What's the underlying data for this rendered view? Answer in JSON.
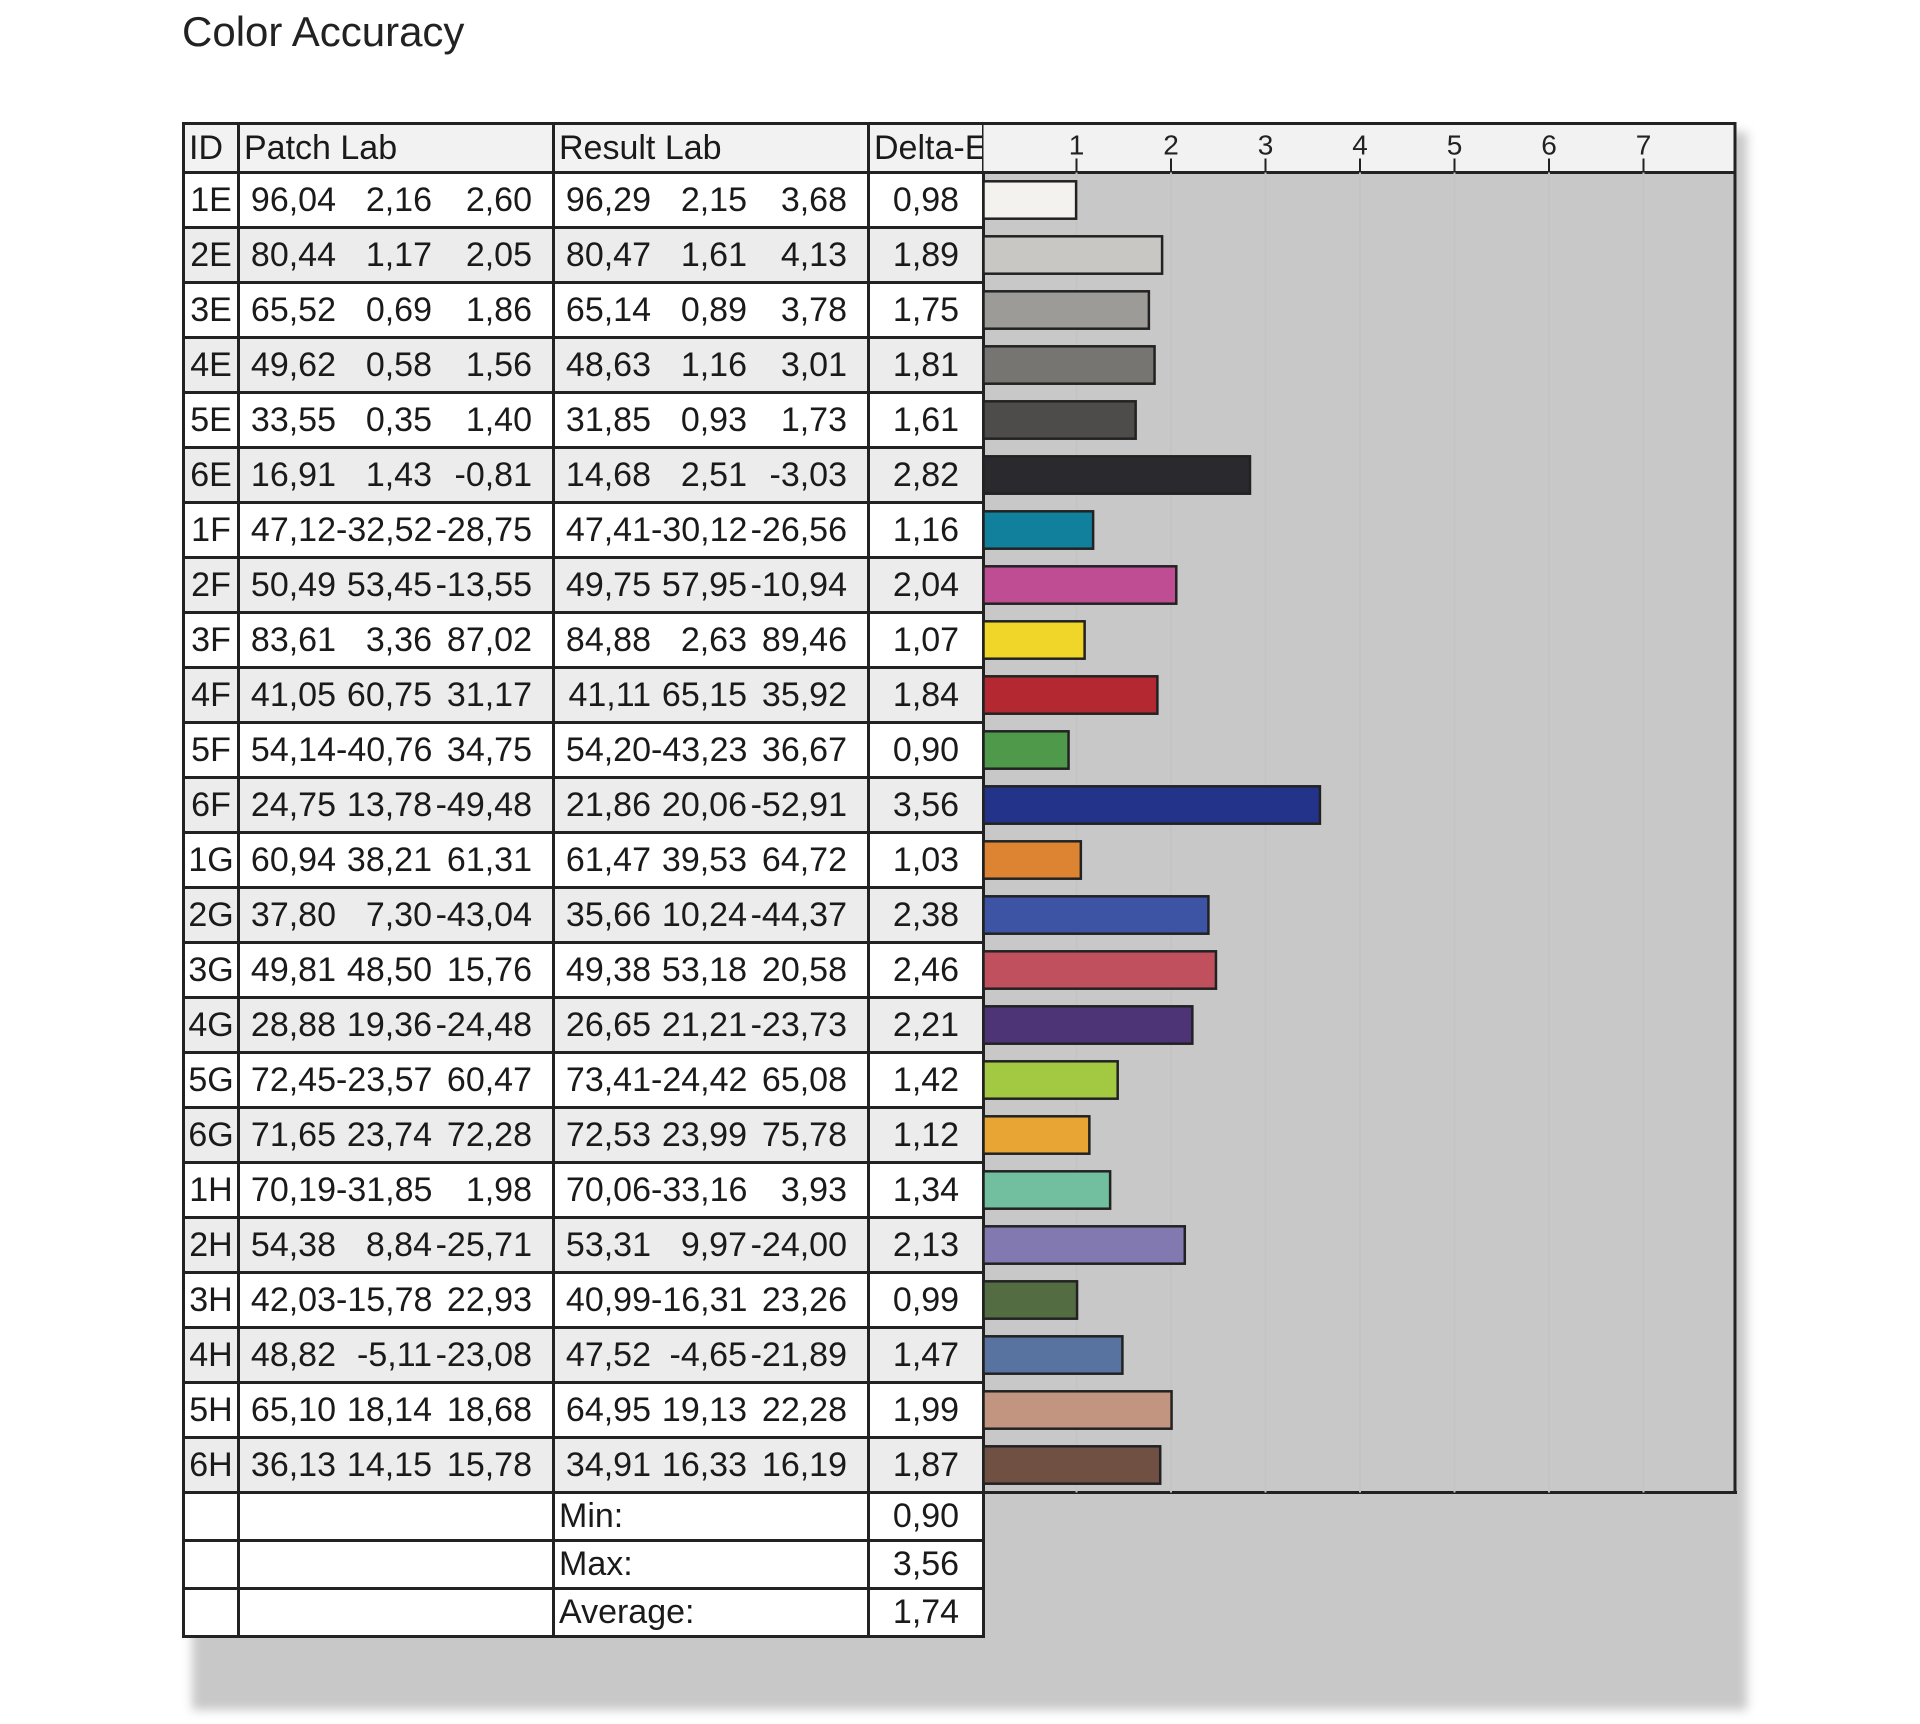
{
  "title": "Color Accuracy",
  "headers": {
    "id": "ID",
    "patch": "Patch Lab",
    "result": "Result Lab",
    "de": "Delta-E"
  },
  "summary": [
    {
      "label": "Min:",
      "value": "0,90"
    },
    {
      "label": "Max:",
      "value": "3,56"
    },
    {
      "label": "Average:",
      "value": "1,74"
    }
  ],
  "rows": [
    {
      "id": "1E",
      "patch": [
        "96,04",
        "2,16",
        "2,60"
      ],
      "result": [
        "96,29",
        "2,15",
        "3,68"
      ],
      "de": "0,98",
      "color": "#f4f2ee"
    },
    {
      "id": "2E",
      "patch": [
        "80,44",
        "1,17",
        "2,05"
      ],
      "result": [
        "80,47",
        "1,61",
        "4,13"
      ],
      "de": "1,89",
      "color": "#c8c7c3"
    },
    {
      "id": "3E",
      "patch": [
        "65,52",
        "0,69",
        "1,86"
      ],
      "result": [
        "65,14",
        "0,89",
        "3,78"
      ],
      "de": "1,75",
      "color": "#9c9b97"
    },
    {
      "id": "4E",
      "patch": [
        "49,62",
        "0,58",
        "1,56"
      ],
      "result": [
        "48,63",
        "1,16",
        "3,01"
      ],
      "de": "1,81",
      "color": "#767571"
    },
    {
      "id": "5E",
      "patch": [
        "33,55",
        "0,35",
        "1,40"
      ],
      "result": [
        "31,85",
        "0,93",
        "1,73"
      ],
      "de": "1,61",
      "color": "#4d4c4a"
    },
    {
      "id": "6E",
      "patch": [
        "16,91",
        "1,43",
        "-0,81"
      ],
      "result": [
        "14,68",
        "2,51",
        "-3,03"
      ],
      "de": "2,82",
      "color": "#2a292d"
    },
    {
      "id": "1F",
      "patch": [
        "47,12",
        "-32,52",
        "-28,75"
      ],
      "result": [
        "47,41",
        "-30,12",
        "-26,56"
      ],
      "de": "1,16",
      "color": "#11809c"
    },
    {
      "id": "2F",
      "patch": [
        "50,49",
        "53,45",
        "-13,55"
      ],
      "result": [
        "49,75",
        "57,95",
        "-10,94"
      ],
      "de": "2,04",
      "color": "#bf4d93"
    },
    {
      "id": "3F",
      "patch": [
        "83,61",
        "3,36",
        "87,02"
      ],
      "result": [
        "84,88",
        "2,63",
        "89,46"
      ],
      "de": "1,07",
      "color": "#f0d628"
    },
    {
      "id": "4F",
      "patch": [
        "41,05",
        "60,75",
        "31,17"
      ],
      "result": [
        "41,11",
        "65,15",
        "35,92"
      ],
      "de": "1,84",
      "color": "#b42831"
    },
    {
      "id": "5F",
      "patch": [
        "54,14",
        "-40,76",
        "34,75"
      ],
      "result": [
        "54,20",
        "-43,23",
        "36,67"
      ],
      "de": "0,90",
      "color": "#4f9a4a"
    },
    {
      "id": "6F",
      "patch": [
        "24,75",
        "13,78",
        "-49,48"
      ],
      "result": [
        "21,86",
        "20,06",
        "-52,91"
      ],
      "de": "3,56",
      "color": "#24338a"
    },
    {
      "id": "1G",
      "patch": [
        "60,94",
        "38,21",
        "61,31"
      ],
      "result": [
        "61,47",
        "39,53",
        "64,72"
      ],
      "de": "1,03",
      "color": "#dc8431"
    },
    {
      "id": "2G",
      "patch": [
        "37,80",
        "7,30",
        "-43,04"
      ],
      "result": [
        "35,66",
        "10,24",
        "-44,37"
      ],
      "de": "2,38",
      "color": "#3c54a3"
    },
    {
      "id": "3G",
      "patch": [
        "49,81",
        "48,50",
        "15,76"
      ],
      "result": [
        "49,38",
        "53,18",
        "20,58"
      ],
      "de": "2,46",
      "color": "#c1505e"
    },
    {
      "id": "4G",
      "patch": [
        "28,88",
        "19,36",
        "-24,48"
      ],
      "result": [
        "26,65",
        "21,21",
        "-23,73"
      ],
      "de": "2,21",
      "color": "#4d3477"
    },
    {
      "id": "5G",
      "patch": [
        "72,45",
        "-23,57",
        "60,47"
      ],
      "result": [
        "73,41",
        "-24,42",
        "65,08"
      ],
      "de": "1,42",
      "color": "#a3c842"
    },
    {
      "id": "6G",
      "patch": [
        "71,65",
        "23,74",
        "72,28"
      ],
      "result": [
        "72,53",
        "23,99",
        "75,78"
      ],
      "de": "1,12",
      "color": "#e9a533"
    },
    {
      "id": "1H",
      "patch": [
        "70,19",
        "-31,85",
        "1,98"
      ],
      "result": [
        "70,06",
        "-33,16",
        "3,93"
      ],
      "de": "1,34",
      "color": "#72bfa0"
    },
    {
      "id": "2H",
      "patch": [
        "54,38",
        "8,84",
        "-25,71"
      ],
      "result": [
        "53,31",
        "9,97",
        "-24,00"
      ],
      "de": "2,13",
      "color": "#8279b0"
    },
    {
      "id": "3H",
      "patch": [
        "42,03",
        "-15,78",
        "22,93"
      ],
      "result": [
        "40,99",
        "-16,31",
        "23,26"
      ],
      "de": "0,99",
      "color": "#546c42"
    },
    {
      "id": "4H",
      "patch": [
        "48,82",
        "-5,11",
        "-23,08"
      ],
      "result": [
        "47,52",
        "-4,65",
        "-21,89"
      ],
      "de": "1,47",
      "color": "#58739f"
    },
    {
      "id": "5H",
      "patch": [
        "65,10",
        "18,14",
        "18,68"
      ],
      "result": [
        "64,95",
        "19,13",
        "22,28"
      ],
      "de": "1,99",
      "color": "#c29580"
    },
    {
      "id": "6H",
      "patch": [
        "36,13",
        "14,15",
        "15,78"
      ],
      "result": [
        "34,91",
        "16,33",
        "16,19"
      ],
      "de": "1,87",
      "color": "#6f5043"
    }
  ],
  "chart_data": {
    "type": "bar",
    "orientation": "horizontal",
    "categories": [
      "1E",
      "2E",
      "3E",
      "4E",
      "5E",
      "6E",
      "1F",
      "2F",
      "3F",
      "4F",
      "5F",
      "6F",
      "1G",
      "2G",
      "3G",
      "4G",
      "5G",
      "6G",
      "1H",
      "2H",
      "3H",
      "4H",
      "5H",
      "6H"
    ],
    "values": [
      0.98,
      1.89,
      1.75,
      1.81,
      1.61,
      2.82,
      1.16,
      2.04,
      1.07,
      1.84,
      0.9,
      3.56,
      1.03,
      2.38,
      2.46,
      2.21,
      1.42,
      1.12,
      1.34,
      2.13,
      0.99,
      1.47,
      1.99,
      1.87
    ],
    "ticks": [
      "1",
      "2",
      "3",
      "4",
      "5",
      "6",
      "7"
    ],
    "xlim": [
      0,
      8
    ],
    "grid": true,
    "title": "Color Accuracy"
  }
}
